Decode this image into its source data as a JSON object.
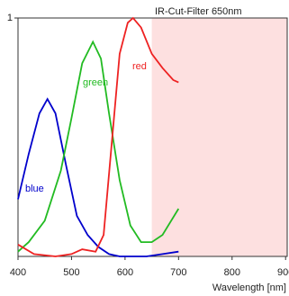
{
  "chart_data": {
    "type": "line",
    "xlabel": "Wavelength [nm]",
    "annotation": "IR-Cut-Filter 650nm",
    "shade_from": 650,
    "shade_color": "#fde0e0",
    "xlim": [
      400,
      903
    ],
    "ylim": [
      0,
      1
    ],
    "xticks": [
      400,
      500,
      600,
      700,
      800,
      900
    ],
    "yticks": [
      1
    ],
    "series": [
      {
        "name": "blue",
        "color": "#0000cc",
        "x": [
          400,
          420,
          440,
          455,
          470,
          490,
          510,
          530,
          550,
          570,
          590,
          610,
          640,
          670,
          700
        ],
        "values": [
          0.24,
          0.43,
          0.6,
          0.66,
          0.6,
          0.38,
          0.17,
          0.09,
          0.04,
          0.01,
          0.0,
          0.0,
          0.0,
          0.01,
          0.02
        ]
      },
      {
        "name": "green",
        "color": "#22bb22",
        "x": [
          400,
          420,
          450,
          480,
          500,
          520,
          540,
          555,
          570,
          590,
          610,
          630,
          650,
          670,
          700
        ],
        "values": [
          0.02,
          0.06,
          0.15,
          0.36,
          0.58,
          0.81,
          0.9,
          0.83,
          0.6,
          0.32,
          0.13,
          0.06,
          0.06,
          0.09,
          0.2
        ]
      },
      {
        "name": "red",
        "color": "#ee2222",
        "x": [
          400,
          430,
          470,
          500,
          520,
          545,
          560,
          575,
          590,
          605,
          615,
          630,
          650,
          670,
          690,
          700
        ],
        "values": [
          0.05,
          0.01,
          0.0,
          0.01,
          0.03,
          0.02,
          0.09,
          0.47,
          0.85,
          0.98,
          1.0,
          0.96,
          0.85,
          0.79,
          0.74,
          0.73
        ]
      }
    ]
  }
}
